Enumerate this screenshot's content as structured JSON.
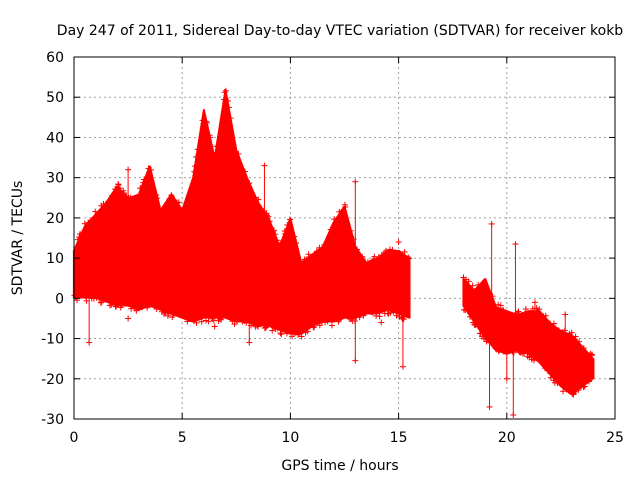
{
  "chart_data": {
    "type": "scatter",
    "title": "Day 247 of 2011, Sidereal Day-to-day VTEC variation (SDTVAR) for receiver kokb",
    "xlabel": "GPS time / hours",
    "ylabel": "SDTVAR / TECUs",
    "xlim": [
      0,
      25
    ],
    "ylim": [
      -30,
      60
    ],
    "x_ticks": [
      "0",
      "5",
      "10",
      "15",
      "20",
      "25"
    ],
    "y_ticks": [
      "-30",
      "-20",
      "-10",
      "0",
      "10",
      "20",
      "30",
      "40",
      "50",
      "60"
    ],
    "grid": true,
    "marker": "+",
    "color": "#ff0000",
    "envelope": {
      "x": [
        0.0,
        0.5,
        1.0,
        1.5,
        2.0,
        2.5,
        3.0,
        3.5,
        4.0,
        4.5,
        5.0,
        5.5,
        6.0,
        6.5,
        7.0,
        7.5,
        8.0,
        8.5,
        9.0,
        9.5,
        10.0,
        10.5,
        11.0,
        11.5,
        12.0,
        12.5,
        13.0,
        13.5,
        14.0,
        14.5,
        15.0,
        15.5
      ],
      "upper": [
        12,
        18,
        21,
        24,
        28,
        25,
        26,
        33,
        22,
        26,
        22,
        30,
        47,
        35,
        52,
        37,
        30,
        24,
        20,
        13,
        20,
        9,
        11,
        13,
        19,
        23,
        13,
        9,
        10,
        12,
        12,
        10
      ],
      "lower": [
        0,
        0,
        0,
        -1,
        -2,
        -2,
        -3,
        -2,
        -3,
        -4,
        -5,
        -6,
        -5,
        -5,
        -5,
        -6,
        -6,
        -7,
        -7,
        -8,
        -9,
        -9,
        -7,
        -6,
        -6,
        -5,
        -5,
        -4,
        -4,
        -3,
        -4,
        -5
      ]
    },
    "envelope2": {
      "x": [
        18.0,
        18.5,
        19.0,
        19.5,
        20.0,
        20.5,
        21.0,
        21.5,
        22.0,
        22.5,
        23.0,
        23.5,
        24.0
      ],
      "upper": [
        5,
        2,
        5,
        -2,
        -3,
        -4,
        -3,
        -3,
        -6,
        -8,
        -9,
        -12,
        -15
      ],
      "lower": [
        -2,
        -6,
        -10,
        -13,
        -14,
        -13,
        -14,
        -16,
        -19,
        -22,
        -24,
        -22,
        -20
      ]
    },
    "spikes": [
      {
        "x": 0.7,
        "y": -11
      },
      {
        "x": 2.5,
        "y": -5
      },
      {
        "x": 2.5,
        "y": 32
      },
      {
        "x": 6.5,
        "y": -7
      },
      {
        "x": 8.1,
        "y": -11
      },
      {
        "x": 8.8,
        "y": 33
      },
      {
        "x": 13.0,
        "y": 29
      },
      {
        "x": 13.0,
        "y": -15.5
      },
      {
        "x": 14.2,
        "y": -6
      },
      {
        "x": 15.2,
        "y": -17
      },
      {
        "x": 15.0,
        "y": 14
      },
      {
        "x": 19.3,
        "y": 18.5
      },
      {
        "x": 19.2,
        "y": -27
      },
      {
        "x": 20.4,
        "y": 13.5
      },
      {
        "x": 20.3,
        "y": -29
      },
      {
        "x": 20.0,
        "y": -20
      },
      {
        "x": 21.3,
        "y": -1
      },
      {
        "x": 22.7,
        "y": -4
      }
    ]
  }
}
